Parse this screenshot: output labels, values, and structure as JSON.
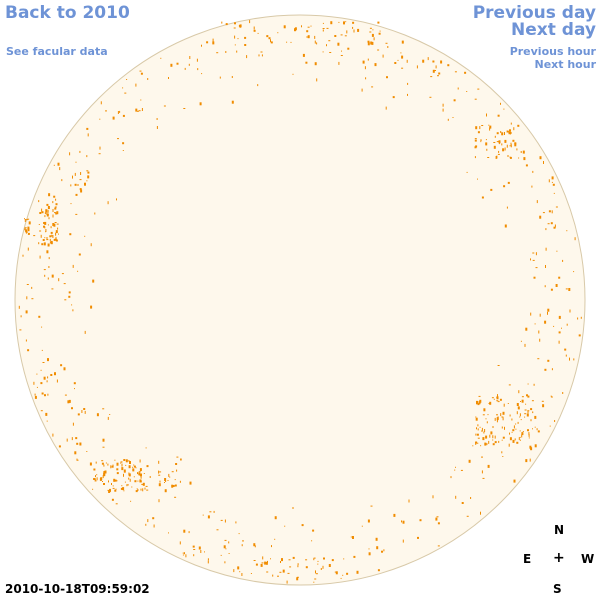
{
  "nav": {
    "back_label": "Back to 2010",
    "facular_label": "See facular data",
    "previous_day_label": "Previous day",
    "next_day_label": "Next day",
    "previous_hour_label": "Previous hour",
    "next_hour_label": "Next hour"
  },
  "compass": {
    "north": "N",
    "east": "E",
    "center": "+",
    "west": "W",
    "south": "S"
  },
  "timestamp": "2010-10-18T09:59:02",
  "colors": {
    "link": "#6e93d6",
    "disk_fill": "#fef8ec",
    "disk_edge": "#d8c9a8",
    "facula": "#f08c00"
  }
}
